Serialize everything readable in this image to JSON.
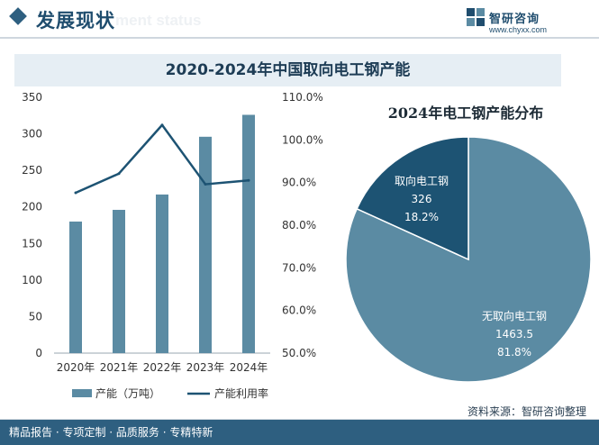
{
  "header": {
    "title": "发展现状",
    "watermark": "ment status",
    "brand_name": "智研咨询",
    "brand_url": "www.chyxx.com"
  },
  "chart_data": [
    {
      "type": "bar+line",
      "title": "2020-2024年中国取向电工钢产能",
      "categories": [
        "2020年",
        "2021年",
        "2022年",
        "2023年",
        "2024年"
      ],
      "series": [
        {
          "name": "产能（万吨）",
          "type": "bar",
          "axis": "left",
          "values": [
            180,
            196,
            217,
            296,
            326
          ]
        },
        {
          "name": "产能利用率",
          "type": "line",
          "axis": "right",
          "values": [
            87.6,
            92.1,
            103.5,
            89.6,
            90.5
          ]
        }
      ],
      "left_axis": {
        "min": 0,
        "max": 350,
        "ticks": [
          "0",
          "50",
          "100",
          "150",
          "200",
          "250",
          "300",
          "350"
        ]
      },
      "right_axis": {
        "min": 50,
        "max": 110,
        "ticks": [
          "50.0%",
          "60.0%",
          "70.0%",
          "80.0%",
          "90.0%",
          "100.0%",
          "110.0%"
        ]
      },
      "colors": {
        "bar": "#5b8ba3",
        "line": "#1d5373"
      }
    },
    {
      "type": "pie",
      "title": "2024年电工钢产能分布",
      "slices": [
        {
          "label": "无取向电工钢",
          "value": 1463.5,
          "value_label": "1463.5",
          "percent_label": "81.8%",
          "color": "#5b8ba3"
        },
        {
          "label": "取向电工钢",
          "value": 326,
          "value_label": "326",
          "percent_label": "18.2%",
          "color": "#1d5373"
        }
      ]
    }
  ],
  "source": "资料来源：智研咨询整理",
  "footer": {
    "slogan": "精品报告 · 专项定制 · 品质服务 · 专精特新"
  }
}
